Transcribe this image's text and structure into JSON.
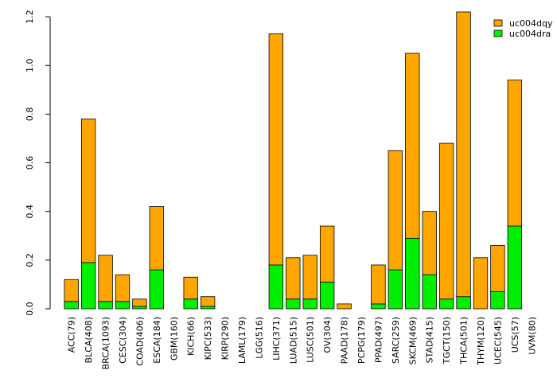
{
  "chart_data": {
    "type": "bar",
    "stacked": true,
    "title": "",
    "xlabel": "",
    "ylabel": "",
    "ylim": [
      0,
      1.22
    ],
    "yticks": [
      0.0,
      0.2,
      0.4,
      0.6,
      0.8,
      1.0,
      1.2
    ],
    "ytick_labels": [
      "0.0",
      "0.2",
      "0.4",
      "0.6",
      "0.8",
      "1.0",
      "1.2"
    ],
    "grid": false,
    "legend_position": "top-right",
    "categories": [
      "ACC(79)",
      "BLCA(408)",
      "BRCA(1093)",
      "CESC(304)",
      "COAD(406)",
      "ESCA(184)",
      "GBM(160)",
      "KICH(66)",
      "KIPC(533)",
      "KIRP(290)",
      "LAML(179)",
      "LGG(516)",
      "LIHC(371)",
      "LUAD(515)",
      "LUSC(501)",
      "OV(304)",
      "PAAD(178)",
      "PCPG(179)",
      "PPAD(497)",
      "SARC(259)",
      "SKCM(469)",
      "STAD(415)",
      "TGCT(150)",
      "THCA(501)",
      "THYM(120)",
      "UCEC(545)",
      "UCS(57)",
      "UVM(80)"
    ],
    "series": [
      {
        "name": "uc004dra",
        "color": "#00ee00",
        "values": [
          0.03,
          0.19,
          0.03,
          0.03,
          0.01,
          0.16,
          0.0,
          0.04,
          0.01,
          0.0,
          0.0,
          0.0,
          0.18,
          0.04,
          0.04,
          0.11,
          0.0,
          0.0,
          0.02,
          0.16,
          0.29,
          0.14,
          0.04,
          0.05,
          0.0,
          0.07,
          0.34,
          0.0
        ]
      },
      {
        "name": "uc004dqy",
        "color": "#ffa500",
        "values": [
          0.09,
          0.59,
          0.19,
          0.11,
          0.03,
          0.26,
          0.0,
          0.09,
          0.04,
          0.0,
          0.0,
          0.0,
          0.95,
          0.17,
          0.18,
          0.23,
          0.02,
          0.0,
          0.16,
          0.49,
          0.76,
          0.26,
          0.64,
          1.17,
          0.21,
          0.19,
          0.6,
          0.0
        ]
      }
    ],
    "legend": [
      {
        "name": "uc004dqy",
        "color": "#ffa500"
      },
      {
        "name": "uc004dra",
        "color": "#00ee00"
      }
    ]
  }
}
